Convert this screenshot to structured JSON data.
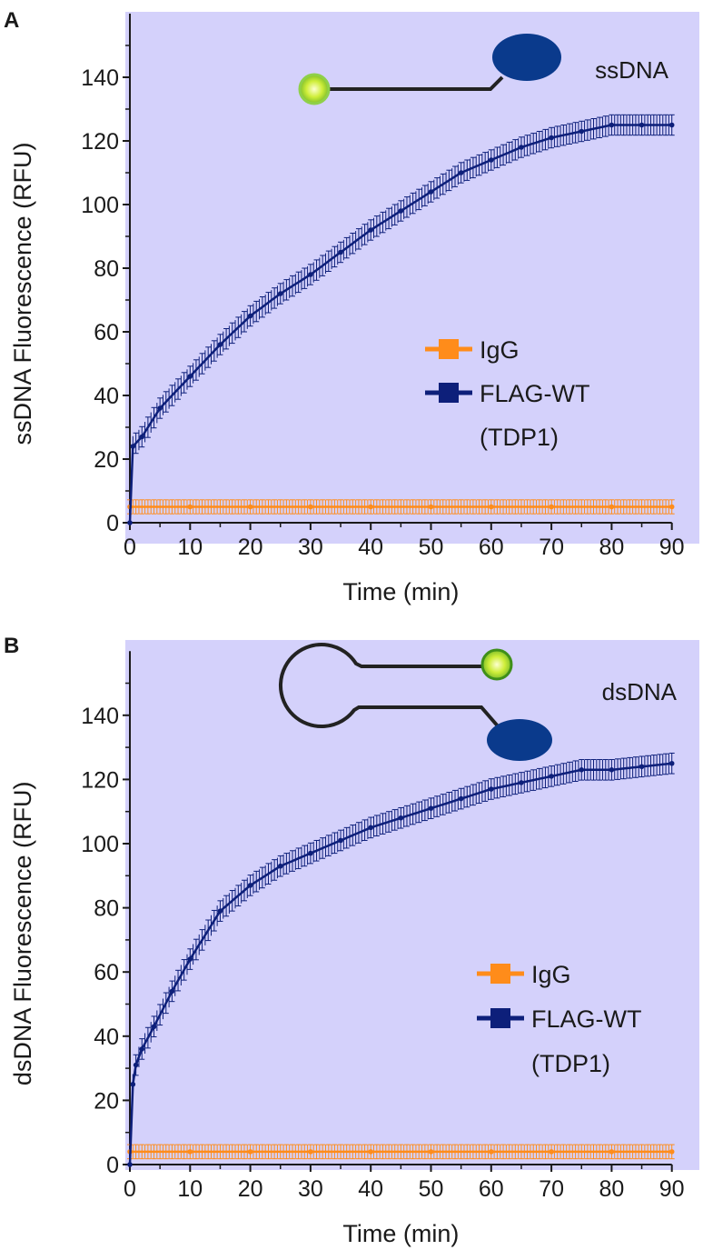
{
  "colors": {
    "plot_bg": "#d4d1fb",
    "igg": "#ff8c1a",
    "flag": "#0d1f7a",
    "ellipse": "#0a3a8c",
    "bead_center": "#eaff8a",
    "bead_edge": "#8fd04a",
    "strand": "#222222"
  },
  "chart_data": [
    {
      "panel_label": "A",
      "type": "line",
      "title": "",
      "inset_label": "ssDNA",
      "xlabel": "Time (min)",
      "ylabel": "ssDNA Fluorescence (RFU)",
      "xlim": [
        0,
        90
      ],
      "ylim": [
        0,
        160
      ],
      "xticks": [
        0,
        10,
        20,
        30,
        40,
        50,
        60,
        70,
        80,
        90
      ],
      "yticks": [
        0,
        20,
        40,
        60,
        80,
        100,
        120,
        140
      ],
      "legend": {
        "position": "center-right",
        "entries": [
          "IgG",
          "FLAG-WT",
          "(TDP1)"
        ]
      },
      "series": [
        {
          "name": "IgG",
          "color_key": "igg",
          "x": [
            0,
            10,
            20,
            30,
            40,
            50,
            60,
            70,
            80,
            90
          ],
          "y": [
            5,
            5,
            5,
            5,
            5,
            5,
            5,
            5,
            5,
            5
          ]
        },
        {
          "name": "FLAG-WT (TDP1)",
          "color_key": "flag",
          "x": [
            0,
            0.5,
            2,
            5,
            10,
            15,
            20,
            25,
            30,
            35,
            40,
            45,
            50,
            55,
            60,
            65,
            70,
            75,
            80,
            85,
            90
          ],
          "y": [
            0,
            24,
            27,
            36,
            46,
            56,
            65,
            72,
            78,
            85,
            92,
            98,
            104,
            110,
            114,
            118,
            121,
            123,
            125,
            125,
            125
          ]
        }
      ]
    },
    {
      "panel_label": "B",
      "type": "line",
      "title": "",
      "inset_label": "dsDNA",
      "xlabel": "Time (min)",
      "ylabel": "dsDNA Fluorescence (RFU)",
      "xlim": [
        0,
        90
      ],
      "ylim": [
        0,
        160
      ],
      "xticks": [
        0,
        10,
        20,
        30,
        40,
        50,
        60,
        70,
        80,
        90
      ],
      "yticks": [
        0,
        20,
        40,
        60,
        80,
        100,
        120,
        140
      ],
      "legend": {
        "position": "center-right",
        "entries": [
          "IgG",
          "FLAG-WT",
          "(TDP1)"
        ]
      },
      "series": [
        {
          "name": "IgG",
          "color_key": "igg",
          "x": [
            0,
            10,
            20,
            30,
            40,
            50,
            60,
            70,
            80,
            90
          ],
          "y": [
            4,
            4,
            4,
            4,
            4,
            4,
            4,
            4,
            4,
            4
          ]
        },
        {
          "name": "FLAG-WT (TDP1)",
          "color_key": "flag",
          "x": [
            0,
            0.5,
            1,
            2,
            4,
            7,
            10,
            15,
            20,
            25,
            30,
            35,
            40,
            45,
            50,
            55,
            60,
            65,
            70,
            75,
            80,
            85,
            90
          ],
          "y": [
            0,
            25,
            31,
            36,
            43,
            54,
            64,
            79,
            87,
            93,
            97,
            101,
            105,
            108,
            111,
            114,
            117,
            119,
            121,
            123,
            123,
            124,
            125
          ]
        }
      ]
    }
  ]
}
